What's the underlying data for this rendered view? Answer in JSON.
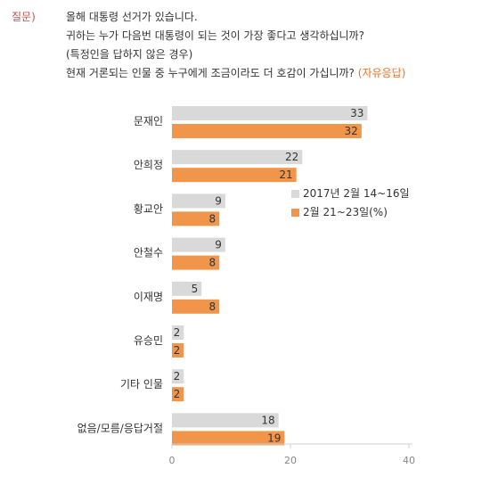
{
  "question": {
    "prefix": "질문)",
    "lines": [
      "올해 대통령 선거가 있습니다.",
      "귀하는 누가 다음번 대통령이 되는 것이 가장 좋다고 생각하십니까?",
      "(특정인을 답하지 않은 경우)",
      "현재 거론되는 인물 중 누구에게 조금이라도 더 호감이 가십니까?"
    ],
    "suffix": "(자유응답)"
  },
  "colors": {
    "series1": "#d9d9d9",
    "series2": "#f0954a",
    "prefix": "#c0504d",
    "suffix": "#e8732a"
  },
  "chart_data": {
    "type": "bar",
    "orientation": "horizontal",
    "categories": [
      "문재인",
      "안희정",
      "황교안",
      "안철수",
      "이재명",
      "유승민",
      "기타 인물",
      "없음/모름/응답거절"
    ],
    "series": [
      {
        "name": "2017년 2월 14~16일",
        "values": [
          33,
          22,
          9,
          9,
          5,
          2,
          2,
          18
        ]
      },
      {
        "name": "2월 21~23일(%)",
        "values": [
          32,
          21,
          8,
          8,
          8,
          2,
          2,
          19
        ]
      }
    ],
    "xlim": [
      0,
      40
    ],
    "xticks": [
      "0",
      "20",
      "40"
    ],
    "legend": "right-middle",
    "grid": false
  }
}
